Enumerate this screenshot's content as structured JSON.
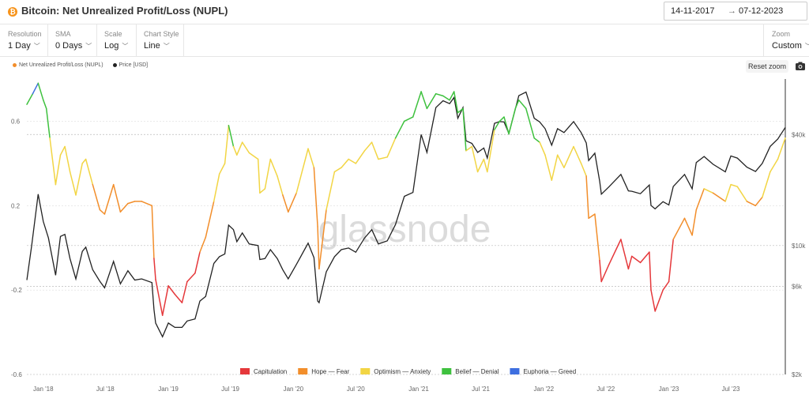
{
  "header": {
    "title": "Bitcoin: Net Unrealized Profit/Loss (NUPL)",
    "date_from": "14-11-2017",
    "date_to": "07-12-2023",
    "coin_icon": "bitcoin-icon"
  },
  "controls": [
    {
      "label": "Resolution",
      "value": "1 Day"
    },
    {
      "label": "SMA",
      "value": "0 Days"
    },
    {
      "label": "Scale",
      "value": "Log"
    },
    {
      "label": "Chart Style",
      "value": "Line"
    }
  ],
  "zoom": {
    "label": "Zoom",
    "value": "Custom"
  },
  "reset_label": "Reset zoom",
  "watermark": "glassnode",
  "chart_data": {
    "type": "line",
    "x_ticks": [
      "Jan '18",
      "Jul '18",
      "Jan '19",
      "Jul '19",
      "Jan '20",
      "Jul '20",
      "Jan '21",
      "Jul '21",
      "Jan '22",
      "Jul '22",
      "Jan '23",
      "Jul '23"
    ],
    "x_tick_dates": [
      "2018-01-01",
      "2018-07-01",
      "2019-01-01",
      "2019-07-01",
      "2020-01-01",
      "2020-07-01",
      "2021-01-01",
      "2021-07-01",
      "2022-01-01",
      "2022-07-01",
      "2023-01-01",
      "2023-07-01"
    ],
    "y_left": {
      "ticks": [
        "0.6",
        "0.2",
        "-0.2",
        "-0.6"
      ],
      "tick_values": [
        0.6,
        0.2,
        -0.2,
        -0.6
      ],
      "range": [
        -0.6,
        0.8
      ]
    },
    "y_right": {
      "scale": "log",
      "ticks": [
        "$40k",
        "$10k",
        "$6k",
        "$2k"
      ],
      "tick_values": [
        40000,
        10000,
        6000,
        2000
      ],
      "range": [
        2000,
        80000
      ]
    },
    "x_range": [
      "2017-11-14",
      "2023-12-07"
    ],
    "grid": true,
    "series": [
      {
        "name": "Net Unrealized Profit/Loss (NUPL)",
        "axis": "left",
        "color": "#f28e2b",
        "points": [
          [
            "2017-11-14",
            0.68
          ],
          [
            "2017-12-01",
            0.73
          ],
          [
            "2017-12-17",
            0.78
          ],
          [
            "2018-01-01",
            0.7
          ],
          [
            "2018-01-10",
            0.66
          ],
          [
            "2018-01-20",
            0.52
          ],
          [
            "2018-02-06",
            0.3
          ],
          [
            "2018-02-20",
            0.44
          ],
          [
            "2018-03-05",
            0.48
          ],
          [
            "2018-03-20",
            0.36
          ],
          [
            "2018-04-06",
            0.25
          ],
          [
            "2018-04-25",
            0.4
          ],
          [
            "2018-05-05",
            0.42
          ],
          [
            "2018-05-25",
            0.3
          ],
          [
            "2018-06-15",
            0.18
          ],
          [
            "2018-06-29",
            0.16
          ],
          [
            "2018-07-25",
            0.3
          ],
          [
            "2018-08-14",
            0.17
          ],
          [
            "2018-09-05",
            0.21
          ],
          [
            "2018-09-25",
            0.22
          ],
          [
            "2018-10-15",
            0.22
          ],
          [
            "2018-11-14",
            0.2
          ],
          [
            "2018-11-20",
            -0.05
          ],
          [
            "2018-11-25",
            -0.15
          ],
          [
            "2018-12-15",
            -0.32
          ],
          [
            "2019-01-01",
            -0.18
          ],
          [
            "2019-01-20",
            -0.22
          ],
          [
            "2019-02-10",
            -0.26
          ],
          [
            "2019-02-25",
            -0.16
          ],
          [
            "2019-03-20",
            -0.12
          ],
          [
            "2019-04-03",
            -0.02
          ],
          [
            "2019-04-20",
            0.05
          ],
          [
            "2019-05-14",
            0.22
          ],
          [
            "2019-05-30",
            0.35
          ],
          [
            "2019-06-15",
            0.4
          ],
          [
            "2019-06-26",
            0.58
          ],
          [
            "2019-07-10",
            0.48
          ],
          [
            "2019-07-20",
            0.44
          ],
          [
            "2019-08-05",
            0.5
          ],
          [
            "2019-08-25",
            0.45
          ],
          [
            "2019-09-20",
            0.42
          ],
          [
            "2019-09-25",
            0.26
          ],
          [
            "2019-10-10",
            0.28
          ],
          [
            "2019-10-26",
            0.42
          ],
          [
            "2019-11-15",
            0.34
          ],
          [
            "2019-12-01",
            0.25
          ],
          [
            "2019-12-17",
            0.17
          ],
          [
            "2020-01-10",
            0.26
          ],
          [
            "2020-02-13",
            0.47
          ],
          [
            "2020-03-01",
            0.38
          ],
          [
            "2020-03-12",
            0.1
          ],
          [
            "2020-03-16",
            -0.1
          ],
          [
            "2020-04-06",
            0.18
          ],
          [
            "2020-04-30",
            0.36
          ],
          [
            "2020-05-20",
            0.38
          ],
          [
            "2020-06-10",
            0.42
          ],
          [
            "2020-07-01",
            0.4
          ],
          [
            "2020-07-27",
            0.46
          ],
          [
            "2020-08-17",
            0.5
          ],
          [
            "2020-09-05",
            0.42
          ],
          [
            "2020-10-01",
            0.43
          ],
          [
            "2020-10-25",
            0.52
          ],
          [
            "2020-11-20",
            0.6
          ],
          [
            "2020-12-15",
            0.62
          ],
          [
            "2021-01-08",
            0.74
          ],
          [
            "2021-01-25",
            0.66
          ],
          [
            "2021-02-20",
            0.73
          ],
          [
            "2021-03-13",
            0.72
          ],
          [
            "2021-04-01",
            0.7
          ],
          [
            "2021-04-14",
            0.74
          ],
          [
            "2021-04-25",
            0.64
          ],
          [
            "2021-05-10",
            0.66
          ],
          [
            "2021-05-19",
            0.46
          ],
          [
            "2021-06-05",
            0.48
          ],
          [
            "2021-06-22",
            0.36
          ],
          [
            "2021-07-10",
            0.42
          ],
          [
            "2021-07-20",
            0.36
          ],
          [
            "2021-08-10",
            0.56
          ],
          [
            "2021-08-25",
            0.6
          ],
          [
            "2021-09-07",
            0.62
          ],
          [
            "2021-09-21",
            0.54
          ],
          [
            "2021-10-10",
            0.66
          ],
          [
            "2021-10-20",
            0.7
          ],
          [
            "2021-11-10",
            0.66
          ],
          [
            "2021-12-04",
            0.52
          ],
          [
            "2021-12-20",
            0.5
          ],
          [
            "2022-01-05",
            0.44
          ],
          [
            "2022-01-24",
            0.32
          ],
          [
            "2022-02-10",
            0.44
          ],
          [
            "2022-03-01",
            0.38
          ],
          [
            "2022-03-29",
            0.48
          ],
          [
            "2022-04-20",
            0.4
          ],
          [
            "2022-05-05",
            0.34
          ],
          [
            "2022-05-12",
            0.14
          ],
          [
            "2022-05-30",
            0.16
          ],
          [
            "2022-06-13",
            -0.06
          ],
          [
            "2022-06-18",
            -0.16
          ],
          [
            "2022-07-10",
            -0.08
          ],
          [
            "2022-08-14",
            0.04
          ],
          [
            "2022-09-05",
            -0.1
          ],
          [
            "2022-09-15",
            -0.04
          ],
          [
            "2022-10-10",
            -0.07
          ],
          [
            "2022-11-05",
            -0.02
          ],
          [
            "2022-11-10",
            -0.2
          ],
          [
            "2022-11-22",
            -0.3
          ],
          [
            "2022-12-15",
            -0.2
          ],
          [
            "2023-01-01",
            -0.16
          ],
          [
            "2023-01-14",
            0.04
          ],
          [
            "2023-02-16",
            0.14
          ],
          [
            "2023-03-10",
            0.06
          ],
          [
            "2023-03-22",
            0.18
          ],
          [
            "2023-04-14",
            0.28
          ],
          [
            "2023-05-10",
            0.26
          ],
          [
            "2023-06-15",
            0.22
          ],
          [
            "2023-07-01",
            0.3
          ],
          [
            "2023-07-20",
            0.29
          ],
          [
            "2023-08-17",
            0.22
          ],
          [
            "2023-09-11",
            0.2
          ],
          [
            "2023-10-01",
            0.24
          ],
          [
            "2023-10-24",
            0.36
          ],
          [
            "2023-11-15",
            0.42
          ],
          [
            "2023-12-07",
            0.52
          ]
        ]
      },
      {
        "name": "Price [USD]",
        "axis": "right",
        "color": "#222222",
        "points": [
          [
            "2017-11-14",
            6500
          ],
          [
            "2017-11-28",
            10000
          ],
          [
            "2017-12-17",
            19000
          ],
          [
            "2018-01-01",
            13500
          ],
          [
            "2018-01-16",
            11000
          ],
          [
            "2018-02-06",
            6900
          ],
          [
            "2018-02-20",
            11200
          ],
          [
            "2018-03-05",
            11500
          ],
          [
            "2018-03-20",
            8500
          ],
          [
            "2018-04-06",
            6600
          ],
          [
            "2018-04-25",
            9300
          ],
          [
            "2018-05-05",
            9800
          ],
          [
            "2018-05-25",
            7400
          ],
          [
            "2018-06-15",
            6400
          ],
          [
            "2018-06-29",
            5900
          ],
          [
            "2018-07-25",
            8200
          ],
          [
            "2018-08-14",
            6200
          ],
          [
            "2018-09-05",
            7300
          ],
          [
            "2018-09-25",
            6500
          ],
          [
            "2018-10-15",
            6600
          ],
          [
            "2018-11-14",
            6300
          ],
          [
            "2018-11-20",
            4500
          ],
          [
            "2018-11-25",
            3800
          ],
          [
            "2018-12-15",
            3200
          ],
          [
            "2019-01-01",
            3800
          ],
          [
            "2019-01-20",
            3600
          ],
          [
            "2019-02-10",
            3600
          ],
          [
            "2019-02-25",
            3900
          ],
          [
            "2019-03-20",
            4000
          ],
          [
            "2019-04-03",
            5000
          ],
          [
            "2019-04-20",
            5300
          ],
          [
            "2019-05-14",
            8000
          ],
          [
            "2019-05-30",
            8700
          ],
          [
            "2019-06-15",
            9000
          ],
          [
            "2019-06-26",
            12900
          ],
          [
            "2019-07-10",
            12200
          ],
          [
            "2019-07-20",
            10500
          ],
          [
            "2019-08-05",
            11700
          ],
          [
            "2019-08-25",
            10200
          ],
          [
            "2019-09-20",
            10000
          ],
          [
            "2019-09-25",
            8400
          ],
          [
            "2019-10-10",
            8500
          ],
          [
            "2019-10-26",
            9500
          ],
          [
            "2019-11-15",
            8500
          ],
          [
            "2019-12-01",
            7400
          ],
          [
            "2019-12-17",
            6600
          ],
          [
            "2020-01-10",
            7900
          ],
          [
            "2020-02-13",
            10300
          ],
          [
            "2020-03-01",
            8600
          ],
          [
            "2020-03-12",
            5000
          ],
          [
            "2020-03-16",
            4900
          ],
          [
            "2020-04-06",
            7200
          ],
          [
            "2020-04-30",
            8700
          ],
          [
            "2020-05-20",
            9500
          ],
          [
            "2020-06-10",
            9700
          ],
          [
            "2020-07-01",
            9200
          ],
          [
            "2020-07-27",
            11000
          ],
          [
            "2020-08-17",
            12200
          ],
          [
            "2020-09-05",
            10200
          ],
          [
            "2020-10-01",
            10600
          ],
          [
            "2020-10-25",
            13000
          ],
          [
            "2020-11-20",
            18500
          ],
          [
            "2020-12-15",
            19400
          ],
          [
            "2021-01-08",
            40000
          ],
          [
            "2021-01-25",
            32000
          ],
          [
            "2021-02-20",
            56000
          ],
          [
            "2021-03-13",
            61000
          ],
          [
            "2021-04-01",
            58800
          ],
          [
            "2021-04-14",
            63500
          ],
          [
            "2021-04-25",
            49000
          ],
          [
            "2021-05-10",
            56000
          ],
          [
            "2021-05-19",
            37000
          ],
          [
            "2021-06-05",
            35800
          ],
          [
            "2021-06-22",
            32000
          ],
          [
            "2021-07-10",
            33800
          ],
          [
            "2021-07-20",
            29800
          ],
          [
            "2021-08-10",
            46000
          ],
          [
            "2021-08-25",
            47000
          ],
          [
            "2021-09-07",
            46800
          ],
          [
            "2021-09-21",
            40500
          ],
          [
            "2021-10-10",
            55000
          ],
          [
            "2021-10-20",
            65000
          ],
          [
            "2021-11-10",
            68000
          ],
          [
            "2021-12-04",
            49000
          ],
          [
            "2021-12-20",
            46800
          ],
          [
            "2022-01-05",
            43000
          ],
          [
            "2022-01-24",
            35000
          ],
          [
            "2022-02-10",
            43000
          ],
          [
            "2022-03-01",
            41000
          ],
          [
            "2022-03-29",
            47000
          ],
          [
            "2022-04-20",
            41000
          ],
          [
            "2022-05-05",
            36000
          ],
          [
            "2022-05-12",
            28900
          ],
          [
            "2022-05-30",
            31700
          ],
          [
            "2022-06-13",
            22400
          ],
          [
            "2022-06-18",
            19000
          ],
          [
            "2022-07-10",
            20800
          ],
          [
            "2022-08-14",
            24300
          ],
          [
            "2022-09-05",
            19800
          ],
          [
            "2022-09-15",
            19700
          ],
          [
            "2022-10-10",
            19100
          ],
          [
            "2022-11-05",
            21300
          ],
          [
            "2022-11-10",
            16500
          ],
          [
            "2022-11-22",
            15800
          ],
          [
            "2022-12-15",
            17300
          ],
          [
            "2023-01-01",
            16600
          ],
          [
            "2023-01-14",
            20900
          ],
          [
            "2023-02-16",
            24300
          ],
          [
            "2023-03-10",
            20300
          ],
          [
            "2023-03-22",
            28200
          ],
          [
            "2023-04-14",
            30400
          ],
          [
            "2023-05-10",
            27600
          ],
          [
            "2023-06-15",
            25100
          ],
          [
            "2023-07-01",
            30600
          ],
          [
            "2023-07-20",
            29800
          ],
          [
            "2023-08-17",
            26600
          ],
          [
            "2023-09-11",
            25200
          ],
          [
            "2023-10-01",
            27900
          ],
          [
            "2023-10-24",
            34500
          ],
          [
            "2023-11-15",
            37800
          ],
          [
            "2023-12-07",
            43700
          ]
        ]
      }
    ],
    "zones": [
      {
        "name": "Capitulation",
        "color": "#e5383b",
        "below": 0.0
      },
      {
        "name": "Hope — Fear",
        "color": "#f28e2b",
        "below": 0.25
      },
      {
        "name": "Optimism — Anxiety",
        "color": "#f2d544",
        "below": 0.5
      },
      {
        "name": "Belief — Denial",
        "color": "#3ec13e",
        "below": 0.75
      },
      {
        "name": "Euphoria — Greed",
        "color": "#3e6fe0",
        "below": 1.0
      }
    ],
    "legend_top": [
      {
        "name": "Net Unrealized Profit/Loss (NUPL)",
        "color": "#f28e2b"
      },
      {
        "name": "Price [USD]",
        "color": "#222222"
      }
    ]
  }
}
